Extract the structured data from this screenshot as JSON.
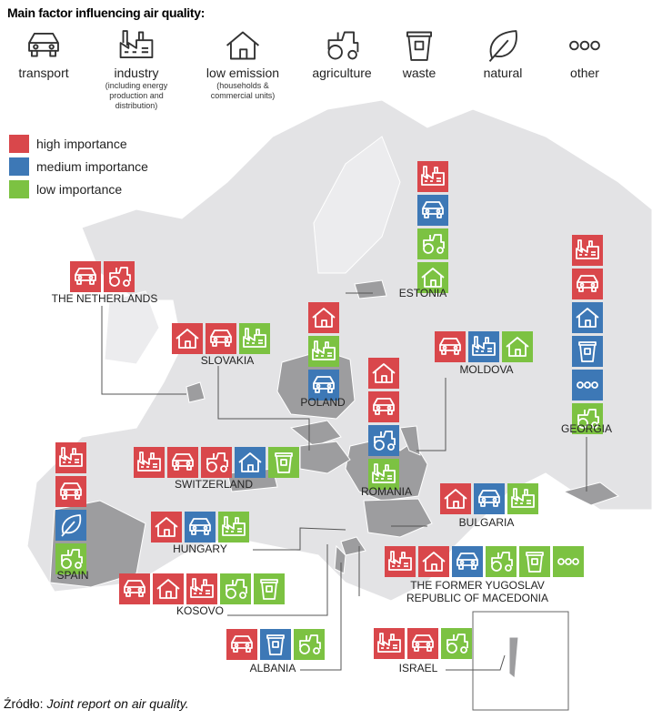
{
  "title": "Main factor influencing air quality:",
  "factors": [
    {
      "label": "transport"
    },
    {
      "label": "industry",
      "note": "(including energy production and distribution)"
    },
    {
      "label": "low emission",
      "note": "(households & commercial units)"
    },
    {
      "label": "agriculture"
    },
    {
      "label": "waste"
    },
    {
      "label": "natural"
    },
    {
      "label": "other"
    }
  ],
  "importance": [
    {
      "label": "high importance",
      "color": "#d9474b"
    },
    {
      "label": "medium importance",
      "color": "#3d78b6"
    },
    {
      "label": "low importance",
      "color": "#7cc242"
    }
  ],
  "countries": [
    {
      "name": "THE NETHERLANDS",
      "tiles": [
        {
          "factor": 0,
          "importance": 0
        },
        {
          "factor": 3,
          "importance": 0
        }
      ]
    },
    {
      "name": "SLOVAKIA",
      "tiles": [
        {
          "factor": 2,
          "importance": 0
        },
        {
          "factor": 0,
          "importance": 0
        },
        {
          "factor": 1,
          "importance": 2
        }
      ]
    },
    {
      "name": "POLAND",
      "tiles": [
        {
          "factor": 2,
          "importance": 0
        },
        {
          "factor": 1,
          "importance": 2
        },
        {
          "factor": 0,
          "importance": 1
        }
      ]
    },
    {
      "name": "ESTONIA",
      "tiles": [
        {
          "factor": 1,
          "importance": 0
        },
        {
          "factor": 0,
          "importance": 1
        },
        {
          "factor": 3,
          "importance": 2
        },
        {
          "factor": 2,
          "importance": 2
        }
      ]
    },
    {
      "name": "GEORGIA",
      "tiles": [
        {
          "factor": 1,
          "importance": 0
        },
        {
          "factor": 0,
          "importance": 0
        },
        {
          "factor": 2,
          "importance": 1
        },
        {
          "factor": 4,
          "importance": 1
        },
        {
          "factor": 6,
          "importance": 1
        },
        {
          "factor": 3,
          "importance": 2
        }
      ]
    },
    {
      "name": "MOLDOVA",
      "tiles": [
        {
          "factor": 0,
          "importance": 0
        },
        {
          "factor": 1,
          "importance": 1
        },
        {
          "factor": 2,
          "importance": 2
        }
      ]
    },
    {
      "name": "ROMANIA",
      "tiles": [
        {
          "factor": 2,
          "importance": 0
        },
        {
          "factor": 0,
          "importance": 0
        },
        {
          "factor": 3,
          "importance": 1
        },
        {
          "factor": 1,
          "importance": 2
        }
      ]
    },
    {
      "name": "SWITZERLAND",
      "tiles": [
        {
          "factor": 1,
          "importance": 0
        },
        {
          "factor": 0,
          "importance": 0
        },
        {
          "factor": 3,
          "importance": 0
        },
        {
          "factor": 2,
          "importance": 1
        },
        {
          "factor": 4,
          "importance": 2
        }
      ]
    },
    {
      "name": "SPAIN",
      "tiles": [
        {
          "factor": 1,
          "importance": 0
        },
        {
          "factor": 0,
          "importance": 0
        },
        {
          "factor": 5,
          "importance": 1
        },
        {
          "factor": 3,
          "importance": 2
        }
      ]
    },
    {
      "name": "BULGARIA",
      "tiles": [
        {
          "factor": 2,
          "importance": 0
        },
        {
          "factor": 0,
          "importance": 1
        },
        {
          "factor": 1,
          "importance": 2
        }
      ]
    },
    {
      "name": "HUNGARY",
      "tiles": [
        {
          "factor": 2,
          "importance": 0
        },
        {
          "factor": 0,
          "importance": 1
        },
        {
          "factor": 1,
          "importance": 2
        }
      ]
    },
    {
      "name": "THE FORMER YUGOSLAV REPUBLIC OF MACEDONIA",
      "tiles": [
        {
          "factor": 1,
          "importance": 0
        },
        {
          "factor": 2,
          "importance": 0
        },
        {
          "factor": 0,
          "importance": 1
        },
        {
          "factor": 3,
          "importance": 2
        },
        {
          "factor": 4,
          "importance": 2
        },
        {
          "factor": 6,
          "importance": 2
        }
      ]
    },
    {
      "name": "KOSOVO",
      "tiles": [
        {
          "factor": 0,
          "importance": 0
        },
        {
          "factor": 2,
          "importance": 0
        },
        {
          "factor": 1,
          "importance": 0
        },
        {
          "factor": 3,
          "importance": 2
        },
        {
          "factor": 4,
          "importance": 2
        }
      ]
    },
    {
      "name": "ALBANIA",
      "tiles": [
        {
          "factor": 0,
          "importance": 0
        },
        {
          "factor": 4,
          "importance": 1
        },
        {
          "factor": 3,
          "importance": 2
        }
      ]
    },
    {
      "name": "ISRAEL",
      "tiles": [
        {
          "factor": 1,
          "importance": 0
        },
        {
          "factor": 0,
          "importance": 0
        },
        {
          "factor": 3,
          "importance": 2
        }
      ]
    }
  ],
  "source": {
    "prefix": "Źródło:",
    "text": "Joint report on air quality."
  }
}
